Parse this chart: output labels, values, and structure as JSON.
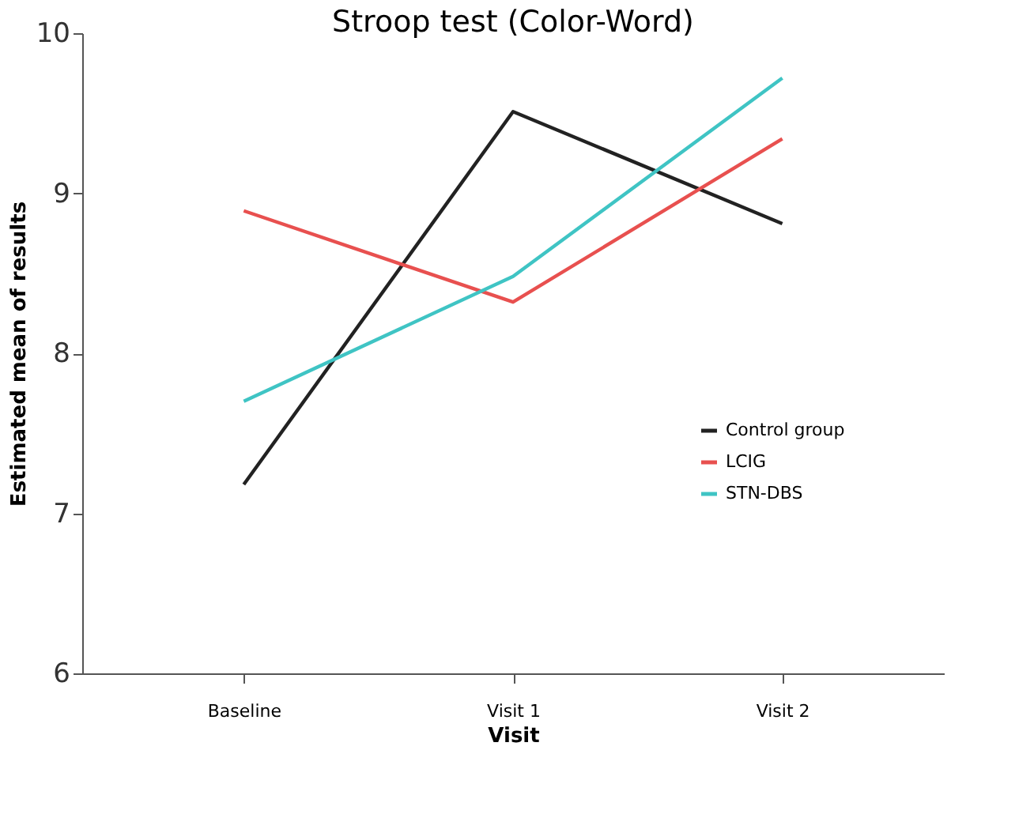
{
  "chart_data": {
    "type": "line",
    "title": "Stroop test (Color-Word)",
    "xlabel": "Visit",
    "ylabel": "Estimated mean of results",
    "categories": [
      "Baseline",
      "Visit 1",
      "Visit 2"
    ],
    "series": [
      {
        "name": "Control group",
        "color": "#222222",
        "values": [
          7.18,
          9.51,
          8.81
        ]
      },
      {
        "name": "LCIG",
        "color": "#e8504f",
        "values": [
          8.89,
          8.32,
          9.34
        ]
      },
      {
        "name": "STN-DBS",
        "color": "#3fc4c4",
        "values": [
          7.7,
          8.48,
          9.72
        ]
      }
    ],
    "ylim": [
      6,
      10
    ],
    "yticks": [
      6,
      7,
      8,
      9,
      10
    ],
    "grid": false,
    "legend": "right",
    "marker": "none",
    "line_style": "solid"
  }
}
